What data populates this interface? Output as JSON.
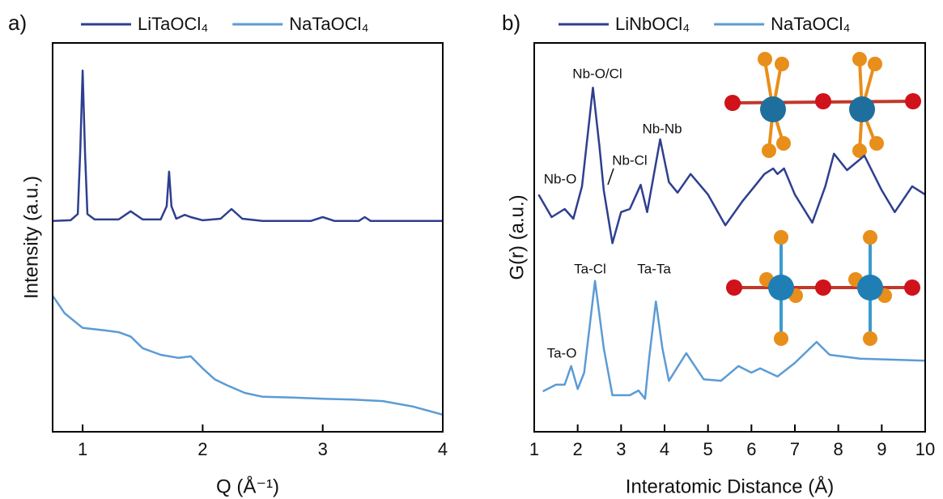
{
  "chart_data": [
    {
      "type": "line",
      "panel_label": "a)",
      "x_label": "Q (Å⁻¹)",
      "y_label": "Intensity (a.u.)",
      "xlim": [
        0.75,
        4
      ],
      "xticks": [
        1,
        2,
        3,
        4
      ],
      "ylim": [
        0,
        100
      ],
      "series": [
        {
          "name": "LiTaOCl₄",
          "color": "#2e3f8f",
          "x": [
            0.75,
            0.9,
            0.96,
            0.98,
            1.0,
            1.02,
            1.04,
            1.1,
            1.3,
            1.4,
            1.5,
            1.65,
            1.7,
            1.72,
            1.74,
            1.78,
            1.85,
            1.9,
            2.0,
            2.15,
            2.24,
            2.33,
            2.5,
            2.9,
            3.0,
            3.1,
            3.3,
            3.35,
            3.4,
            3.7,
            4.0
          ],
          "values": [
            54.2,
            54.4,
            56,
            72,
            92.9,
            72,
            56,
            54.6,
            54.6,
            56.7,
            54.6,
            54.6,
            58,
            66.9,
            58,
            54.8,
            55.8,
            55.2,
            54.4,
            54.8,
            57.3,
            54.8,
            54.2,
            54.2,
            55.2,
            54.2,
            54.2,
            55.2,
            54.2,
            54.2,
            54.2
          ]
        },
        {
          "name": "NaTaOCl₄",
          "color": "#5b9bd5",
          "x": [
            0.75,
            0.85,
            1.0,
            1.15,
            1.3,
            1.4,
            1.5,
            1.65,
            1.8,
            1.9,
            2.0,
            2.1,
            2.2,
            2.35,
            2.5,
            2.75,
            3.0,
            3.25,
            3.5,
            3.75,
            4.0
          ],
          "values": [
            35,
            30.5,
            26.7,
            26.2,
            25.6,
            24.5,
            21.5,
            19.8,
            19,
            19.4,
            16.3,
            13.5,
            12,
            10,
            9,
            8.8,
            8.5,
            8.3,
            7.9,
            6.5,
            4.4
          ]
        }
      ]
    },
    {
      "type": "line",
      "panel_label": "b)",
      "x_label": "Interatomic Distance (Å)",
      "y_label": "G(r) (a.u.)",
      "xlim": [
        1,
        10
      ],
      "xticks": [
        1,
        2,
        3,
        4,
        5,
        6,
        7,
        8,
        9,
        10
      ],
      "ylim": [
        0,
        100
      ],
      "annotations": [
        "Nb-O/Cl",
        "Nb-Nb",
        "Nb-Cl",
        "Nb-O",
        "Ta-Cl",
        "Ta-Ta",
        "Ta-O"
      ],
      "series": [
        {
          "name": "LiNbOCl₄",
          "color": "#2e3f8f",
          "x": [
            1.1,
            1.4,
            1.7,
            1.9,
            2.1,
            2.35,
            2.5,
            2.6,
            2.8,
            3.0,
            3.2,
            3.45,
            3.6,
            3.9,
            4.1,
            4.3,
            4.6,
            5.0,
            5.4,
            5.8,
            6.1,
            6.3,
            6.5,
            6.6,
            6.75,
            7.0,
            7.4,
            7.7,
            7.9,
            8.2,
            8.6,
            9.0,
            9.3,
            9.7,
            10
          ],
          "values": [
            61,
            55.2,
            57.3,
            54.8,
            63.1,
            88.5,
            73.5,
            62.1,
            48.5,
            56.5,
            57.3,
            63.5,
            56.5,
            75.2,
            64.2,
            61.5,
            66.3,
            61,
            53.1,
            59.4,
            63.5,
            66.3,
            67.7,
            66.3,
            67.7,
            61,
            53.8,
            63.1,
            71.5,
            67.3,
            71,
            62.1,
            56.5,
            63.1,
            61
          ]
        },
        {
          "name": "NaTaOCl₄",
          "color": "#5b9bd5",
          "x": [
            1.2,
            1.5,
            1.7,
            1.85,
            2.0,
            2.15,
            2.4,
            2.6,
            2.8,
            3.2,
            3.4,
            3.55,
            3.65,
            3.8,
            3.95,
            4.1,
            4.5,
            4.9,
            5.3,
            5.7,
            6.0,
            6.2,
            6.6,
            7.0,
            7.5,
            7.8,
            8.5,
            10
          ],
          "values": [
            10.4,
            12.1,
            12.1,
            16.9,
            11,
            15.2,
            38.8,
            21.5,
            9.4,
            9.4,
            10.6,
            8.5,
            19.4,
            33.5,
            21.5,
            13.1,
            20.2,
            13.5,
            13.1,
            16.9,
            15.2,
            16.3,
            14.2,
            17.7,
            23.1,
            19.8,
            18.8,
            18.3
          ]
        }
      ]
    }
  ]
}
